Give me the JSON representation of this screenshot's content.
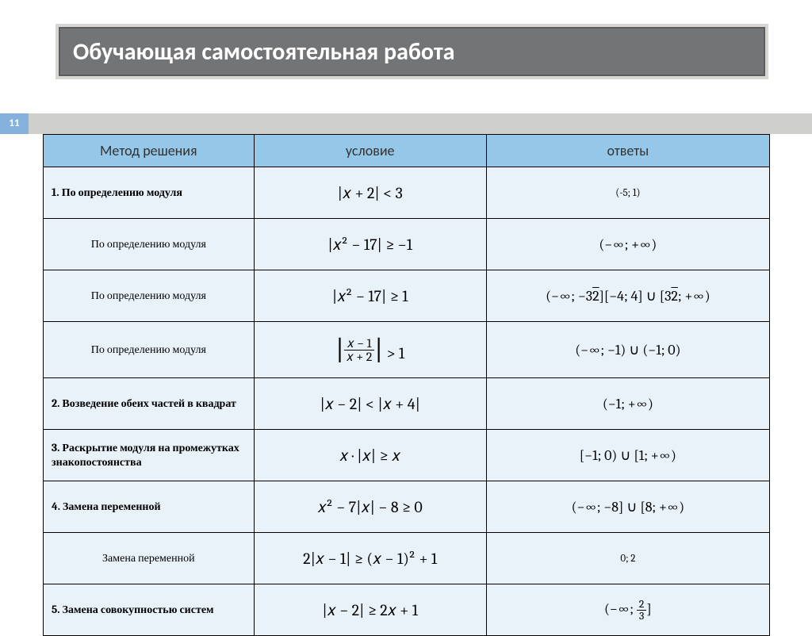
{
  "title": "Обучающая самостоятельная работа",
  "page_number": "11",
  "colors": {
    "title_bg": "#737475",
    "title_border": "#d8d6d2",
    "page_num_bg": "#85b1dd",
    "stripe_bg": "#cfd0ce",
    "header_bg": "#94c7e8",
    "row_bg": "#e9f2f9",
    "text": "#000000"
  },
  "headers": {
    "c1": "Метод решения",
    "c2": "условие",
    "c3": "ответы"
  },
  "rows": [
    {
      "method": "1. По определению модуля",
      "sub": false,
      "cond": "|𝑥 + 2| < 3",
      "ans": "(-5; 1)",
      "ans_small": true
    },
    {
      "method": "По определению модуля",
      "sub": true,
      "cond": "|𝑥² − 17| ≥ −1",
      "ans": "(−∞;  +∞)"
    },
    {
      "method": "По определению модуля",
      "sub": true,
      "cond": "|𝑥² − 17| ≥ 1",
      "ans_html": "(−∞;  −3<span class='sqrt'>2</span>][−4; 4] ∪ [3<span class='sqrt'>2</span>;  +∞)"
    },
    {
      "method": "По определению модуля",
      "sub": true,
      "tall": true,
      "cond_html": "<span class='abs-frac'><span class='bar'>|</span><span class='frac'><span class='n'>𝑥 − 1</span><span class='d'>𝑥 + 2</span></span><span class='bar'>|</span></span> > 1",
      "ans": "(−∞;  −1) ∪ (−1; 0)"
    },
    {
      "method": "2. Возведение обеих частей в квадрат",
      "sub": false,
      "cond": "|𝑥 − 2| < |𝑥 + 4|",
      "ans": "(−1;  +∞)"
    },
    {
      "method": "3. Раскрытие модуля на промежутках знакопостоянства",
      "sub": false,
      "cond": "𝑥 · |𝑥| ≥ 𝑥",
      "ans": "[−1; 0) ∪ [1;  +∞)"
    },
    {
      "method": "4. Замена переменной",
      "sub": false,
      "cond": "𝑥² − 7|𝑥| − 8 ≥ 0",
      "ans": "(−∞;  −8] ∪ [8;  +∞)"
    },
    {
      "method": "Замена переменной",
      "sub": true,
      "cond": "2|𝑥 − 1| ≥ (𝑥 − 1)² + 1",
      "ans": "0; 2",
      "ans_small": true
    },
    {
      "method": "5. Замена совокупностью систем",
      "sub": false,
      "cond": "|𝑥 − 2| ≥ 2𝑥 + 1",
      "ans_html": "(−∞;  <span class='frac' style='font-size:14px'><span class='n'>2</span><span class='d'>3</span></span>]"
    }
  ]
}
